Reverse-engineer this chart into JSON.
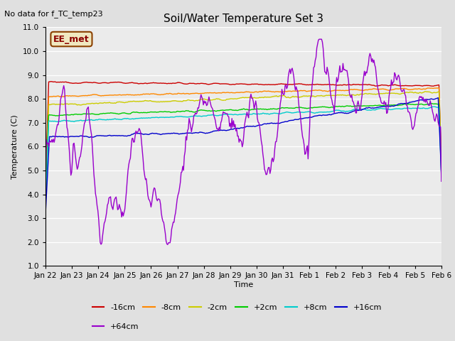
{
  "title": "Soil/Water Temperature Set 3",
  "xlabel": "Time",
  "ylabel": "Temperature (C)",
  "ylim": [
    1.0,
    11.0
  ],
  "yticks": [
    1.0,
    2.0,
    3.0,
    4.0,
    5.0,
    6.0,
    7.0,
    8.0,
    9.0,
    10.0,
    11.0
  ],
  "no_data_text": "No data for f_TC_temp23",
  "ee_met_label": "EE_met",
  "legend_entries": [
    "-16cm",
    "-8cm",
    "-2cm",
    "+2cm",
    "+8cm",
    "+16cm",
    "+64cm"
  ],
  "line_colors": [
    "#cc0000",
    "#ff8800",
    "#cccc00",
    "#00cc00",
    "#00cccc",
    "#0000cc",
    "#9900cc"
  ],
  "bg_color": "#e0e0e0",
  "plot_bg_color": "#ebebeb",
  "n_points": 500,
  "x_tick_labels": [
    "Jan 22",
    "Jan 23",
    "Jan 24",
    "Jan 25",
    "Jan 26",
    "Jan 27",
    "Jan 28",
    "Jan 29",
    "Jan 30",
    "Jan 31",
    "Feb 1",
    "Feb 2",
    "Feb 3",
    "Feb 4",
    "Feb 5",
    "Feb 6"
  ]
}
